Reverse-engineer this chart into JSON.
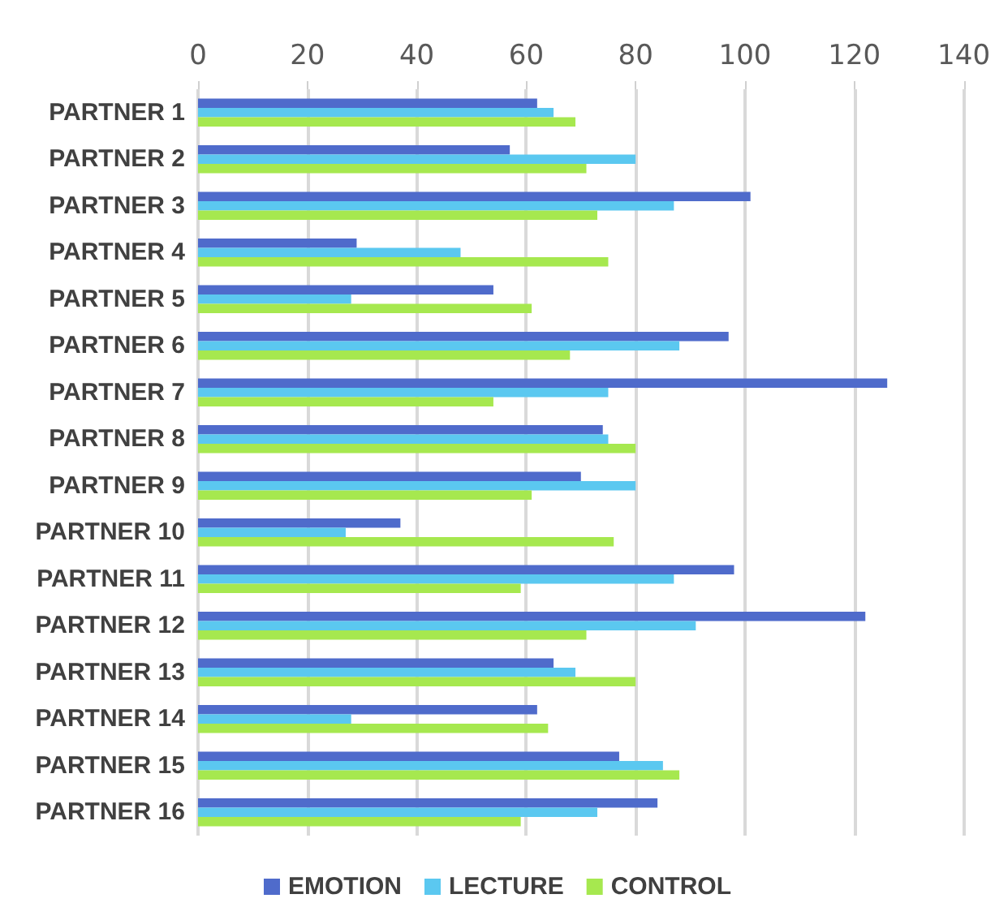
{
  "chart_data": {
    "type": "bar",
    "orientation": "horizontal",
    "categories": [
      "PARTNER 1",
      "PARTNER 2",
      "PARTNER 3",
      "PARTNER 4",
      "PARTNER 5",
      "PARTNER 6",
      "PARTNER 7",
      "PARTNER 8",
      "PARTNER 9",
      "PARTNER 10",
      "PARTNER 11",
      "PARTNER 12",
      "PARTNER 13",
      "PARTNER 14",
      "PARTNER 15",
      "PARTNER 16"
    ],
    "series": [
      {
        "name": "EMOTION",
        "color": "#4f6bcb",
        "values": [
          62,
          57,
          101,
          29,
          54,
          97,
          126,
          74,
          70,
          37,
          98,
          122,
          65,
          62,
          77,
          84
        ]
      },
      {
        "name": "LECTURE",
        "color": "#5bc8f0",
        "values": [
          65,
          80,
          87,
          48,
          28,
          88,
          75,
          75,
          80,
          27,
          87,
          91,
          69,
          28,
          85,
          73
        ]
      },
      {
        "name": "CONTROL",
        "color": "#a6e84f",
        "values": [
          69,
          71,
          73,
          75,
          61,
          68,
          54,
          80,
          61,
          76,
          59,
          71,
          80,
          64,
          88,
          59
        ]
      }
    ],
    "xlim": [
      0,
      140
    ],
    "xticks": [
      0,
      20,
      40,
      60,
      80,
      100,
      120,
      140
    ],
    "grid": "x",
    "legend": "bottom"
  }
}
